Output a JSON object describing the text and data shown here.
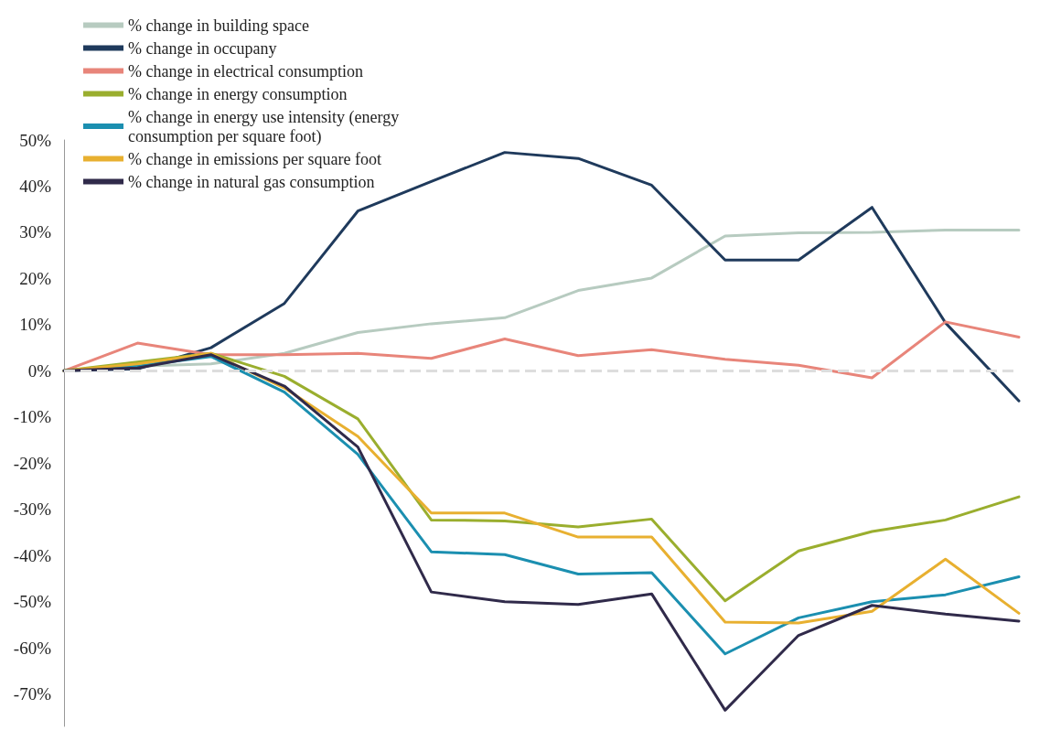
{
  "chart_data": {
    "type": "line",
    "categories": [
      null,
      null,
      null,
      null,
      null,
      null,
      null,
      null,
      null,
      null,
      null,
      null,
      null,
      null
    ],
    "series": [
      {
        "name": "% change in building space",
        "color": "#b7cbc0",
        "values": [
          0,
          1,
          1.5,
          3.8,
          8.3,
          10.2,
          11.5,
          17.4,
          20.1,
          29.2,
          29.9,
          30,
          30.5,
          30.5
        ]
      },
      {
        "name": "% change in occupany",
        "color": "#1f3a5c",
        "values": [
          0,
          0.4,
          5,
          14.6,
          34.6,
          41,
          47.3,
          46,
          40.2,
          24,
          24,
          35.4,
          10.4,
          -6.5
        ]
      },
      {
        "name": "% change in electrical consumption",
        "color": "#e8857a",
        "values": [
          0,
          6,
          3.5,
          3.5,
          3.8,
          2.7,
          6.9,
          3.3,
          4.6,
          2.5,
          1.2,
          -1.5,
          10.6,
          7.3
        ]
      },
      {
        "name": "% change in energy consumption",
        "color": "#9aae2e",
        "values": [
          0,
          1.9,
          3.8,
          -1.2,
          -10.4,
          -32.3,
          -32.5,
          -33.8,
          -32.1,
          -49.8,
          -39,
          -34.8,
          -32.3,
          -27.3
        ]
      },
      {
        "name": "% change in energy use intensity (energy consumption per square foot)",
        "color": "#1b8fb0",
        "values": [
          0,
          1,
          3.1,
          -4.6,
          -18.1,
          -39.2,
          -39.8,
          -44,
          -43.7,
          -61.3,
          -53.5,
          -50,
          -48.5,
          -44.6
        ]
      },
      {
        "name": "% change in emissions per square foot",
        "color": "#e8b030",
        "values": [
          0,
          1.5,
          3.8,
          -3.7,
          -14.2,
          -30.8,
          -30.8,
          -36,
          -36,
          -54.4,
          -54.6,
          -52.1,
          -40.8,
          -52.5
        ]
      },
      {
        "name": "% change in natural gas consumption",
        "color": "#302a4a",
        "values": [
          0,
          0.6,
          3.5,
          -3.3,
          -16.5,
          -47.9,
          -50,
          -50.6,
          -48.3,
          -73.5,
          -57.3,
          -50.8,
          -52.7,
          -54.2
        ]
      }
    ],
    "ylim": [
      -77,
      50
    ],
    "yticks": [
      {
        "value": 50,
        "label": "50%"
      },
      {
        "value": 40,
        "label": "40%"
      },
      {
        "value": 30,
        "label": "30%"
      },
      {
        "value": 20,
        "label": "20%"
      },
      {
        "value": 10,
        "label": "10%"
      },
      {
        "value": 0,
        "label": "0%"
      },
      {
        "value": -10,
        "label": "-10%"
      },
      {
        "value": -20,
        "label": "-20%"
      },
      {
        "value": -30,
        "label": "-30%"
      },
      {
        "value": -40,
        "label": "-40%"
      },
      {
        "value": -50,
        "label": "-50%"
      },
      {
        "value": -60,
        "label": "-60%"
      },
      {
        "value": -70,
        "label": "-70%"
      }
    ],
    "ref_lines": [
      {
        "axis": "y",
        "value": 0,
        "label": null,
        "color": "#dddddd",
        "line_style": "dashed"
      }
    ],
    "grid": false,
    "legend": "top left",
    "marker": "none",
    "line_style": "solid"
  }
}
